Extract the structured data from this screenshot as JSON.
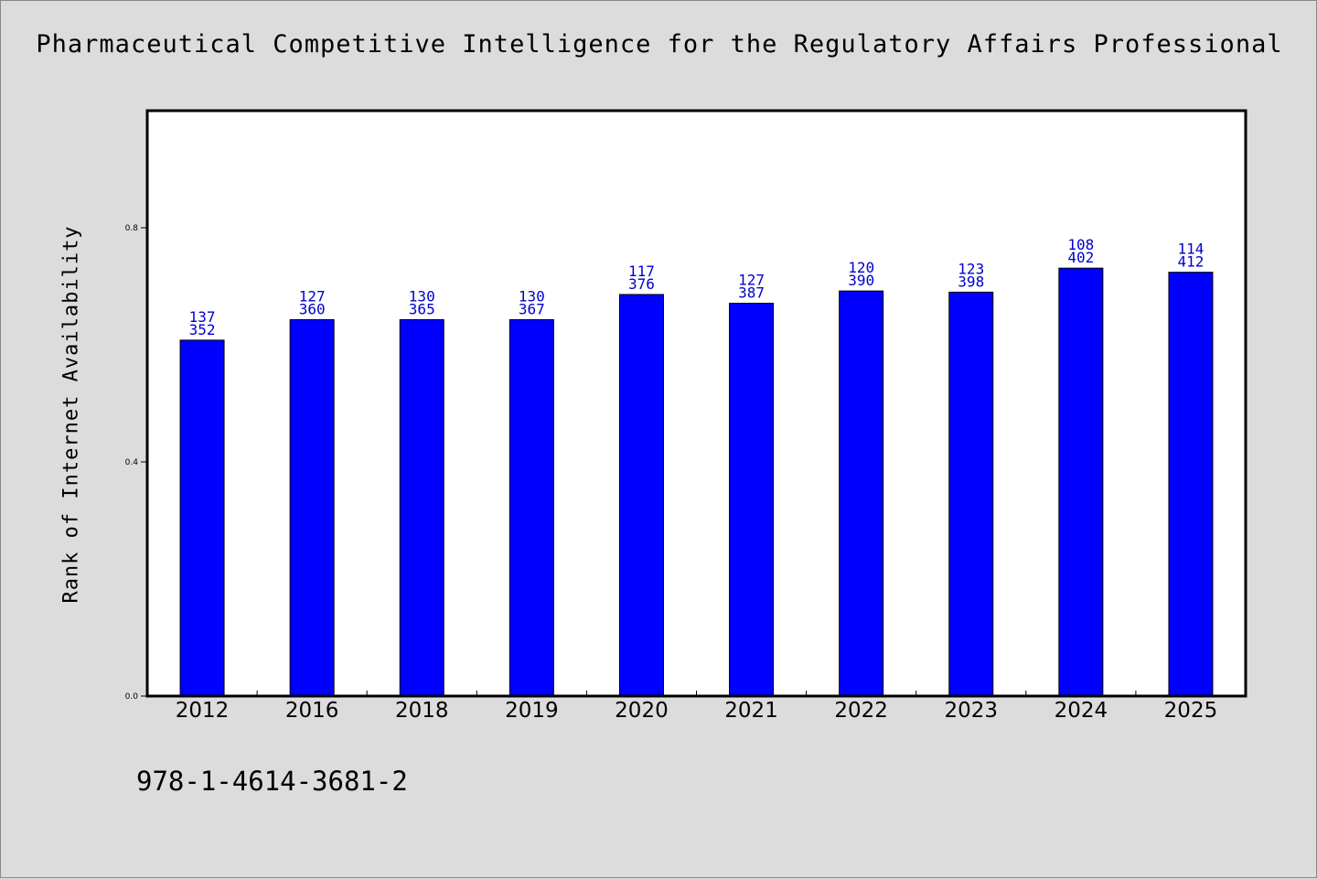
{
  "chart_data": {
    "type": "bar",
    "title": "Pharmaceutical Competitive Intelligence for the Regulatory Affairs Professional",
    "xlabel": "",
    "ylabel": "Rank of Internet Availability",
    "footer": "978-1-4614-3681-2",
    "ylim": [
      0,
      1.0
    ],
    "yticks": [
      "0.0",
      "0.4",
      "0.8"
    ],
    "grid": false,
    "bar_color": "#0000ff",
    "label_color": "#0000cc",
    "categories": [
      "2012",
      "2016",
      "2018",
      "2019",
      "2020",
      "2021",
      "2022",
      "2023",
      "2024",
      "2025"
    ],
    "values": [
      0.608,
      0.643,
      0.643,
      0.643,
      0.686,
      0.671,
      0.692,
      0.69,
      0.731,
      0.724
    ],
    "labels_top": [
      "137",
      "127",
      "130",
      "130",
      "117",
      "127",
      "120",
      "123",
      "108",
      "114"
    ],
    "labels_bottom": [
      "352",
      "360",
      "365",
      "367",
      "376",
      "387",
      "390",
      "398",
      "402",
      "412"
    ]
  }
}
